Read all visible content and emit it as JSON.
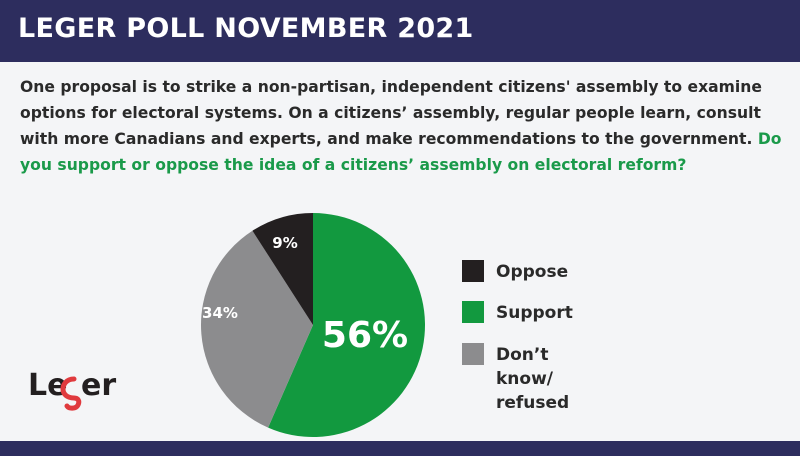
{
  "header": {
    "title": "LEGER POLL NOVEMBER 2021"
  },
  "question": {
    "text": "One proposal is to strike a non-partisan, independent citizens' assembly to examine options for electoral systems. On a citizens’ assembly, regular people learn, consult with more Canadians and experts, and make recommendations to the government. ",
    "highlight": "Do you support or oppose the idea of a citizens’ assembly on electoral reform?"
  },
  "colors": {
    "oppose": "#231f20",
    "support": "#12993f",
    "dont_know": "#8c8c8e",
    "header": "#2d2d5e",
    "highlight": "#1a9a4a",
    "logo_accent": "#e03a3e"
  },
  "chart_data": {
    "type": "pie",
    "slices": [
      {
        "name": "Support",
        "value": 56,
        "label": "56%",
        "color": "#12993f"
      },
      {
        "name": "Don’t know/ refused",
        "value": 34,
        "label": "34%",
        "color": "#8c8c8e"
      },
      {
        "name": "Oppose",
        "value": 9,
        "label": "9%",
        "color": "#231f20"
      }
    ],
    "legend": [
      "Oppose",
      "Support",
      "Don’t know/ refused"
    ],
    "legend_placement": "right"
  },
  "legend": {
    "oppose": "Oppose",
    "support": "Support",
    "dont_know_line1": "Don’t know/",
    "dont_know_line2": "refused"
  },
  "logo": {
    "text": "Leger"
  }
}
